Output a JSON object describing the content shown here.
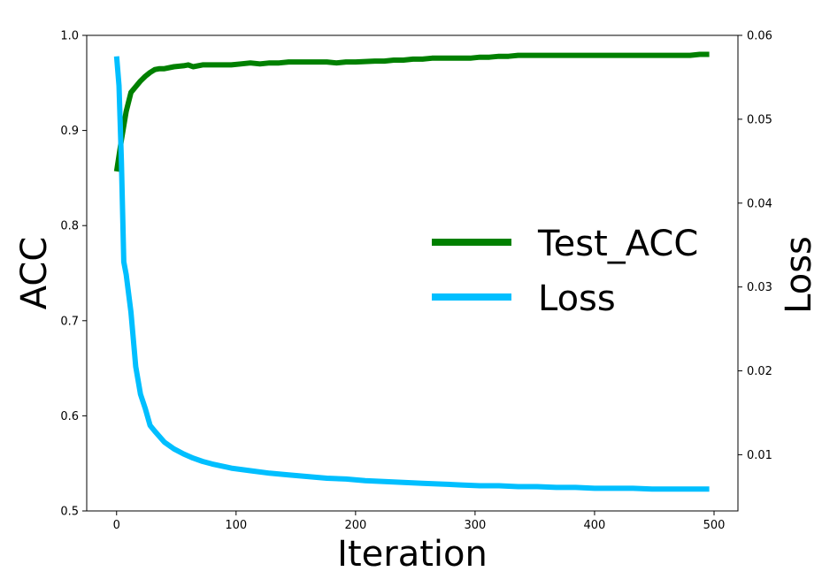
{
  "chart_data": {
    "type": "line",
    "title": "",
    "xlabel": "Iteration",
    "ylabel_left": "ACC",
    "ylabel_right": "Loss",
    "xlim": [
      -25,
      520
    ],
    "ylim_left": [
      0.5,
      1.0
    ],
    "ylim_right": [
      0.0033,
      0.06
    ],
    "x_ticks": [
      0,
      100,
      200,
      300,
      400,
      500
    ],
    "y_ticks_left": [
      0.5,
      0.6,
      0.7,
      0.8,
      0.9,
      1.0
    ],
    "y_ticks_left_labels": [
      "0.5",
      "0.6",
      "0.7",
      "0.8",
      "0.9",
      "1.0"
    ],
    "y_ticks_right": [
      0.01,
      0.02,
      0.03,
      0.04,
      0.05,
      0.06
    ],
    "y_ticks_right_labels": [
      "0.01",
      "0.02",
      "0.03",
      "0.04",
      "0.05",
      "0.06"
    ],
    "grid": false,
    "legend_position": "center-right",
    "series": [
      {
        "name": "Test_ACC",
        "axis": "left",
        "color": "#008000",
        "x": [
          0,
          4,
          8,
          12,
          16,
          20,
          24,
          28,
          32,
          36,
          40,
          48,
          56,
          60,
          64,
          72,
          80,
          96,
          104,
          112,
          120,
          128,
          136,
          144,
          160,
          176,
          184,
          192,
          200,
          216,
          224,
          232,
          240,
          248,
          256,
          264,
          272,
          280,
          296,
          304,
          312,
          320,
          328,
          336,
          352,
          368,
          384,
          400,
          416,
          432,
          448,
          464,
          480,
          488,
          496
        ],
        "y": [
          0.857,
          0.89,
          0.92,
          0.94,
          0.946,
          0.952,
          0.957,
          0.961,
          0.964,
          0.965,
          0.965,
          0.967,
          0.968,
          0.969,
          0.967,
          0.969,
          0.969,
          0.969,
          0.97,
          0.971,
          0.97,
          0.971,
          0.971,
          0.972,
          0.972,
          0.972,
          0.971,
          0.972,
          0.972,
          0.973,
          0.973,
          0.974,
          0.974,
          0.975,
          0.975,
          0.976,
          0.976,
          0.976,
          0.976,
          0.977,
          0.977,
          0.978,
          0.978,
          0.979,
          0.979,
          0.979,
          0.979,
          0.979,
          0.979,
          0.979,
          0.979,
          0.979,
          0.979,
          0.98,
          0.98
        ]
      },
      {
        "name": "Loss",
        "axis": "right",
        "color": "#00bfff",
        "x": [
          0,
          2,
          4,
          6,
          8,
          12,
          16,
          20,
          24,
          28,
          32,
          40,
          48,
          56,
          64,
          72,
          80,
          96,
          112,
          128,
          144,
          160,
          176,
          192,
          208,
          224,
          240,
          256,
          272,
          288,
          304,
          320,
          336,
          352,
          368,
          384,
          400,
          416,
          432,
          448,
          464,
          480,
          496
        ],
        "y": [
          0.0575,
          0.054,
          0.045,
          0.033,
          0.0315,
          0.027,
          0.0205,
          0.0172,
          0.0155,
          0.0135,
          0.0128,
          0.0115,
          0.0107,
          0.0101,
          0.0096,
          0.0092,
          0.0089,
          0.0084,
          0.0081,
          0.0078,
          0.0076,
          0.0074,
          0.0072,
          0.0071,
          0.0069,
          0.0068,
          0.0067,
          0.0066,
          0.0065,
          0.0064,
          0.0063,
          0.0063,
          0.0062,
          0.0062,
          0.0061,
          0.0061,
          0.006,
          0.006,
          0.006,
          0.0059,
          0.0059,
          0.0059,
          0.0059
        ]
      }
    ]
  }
}
